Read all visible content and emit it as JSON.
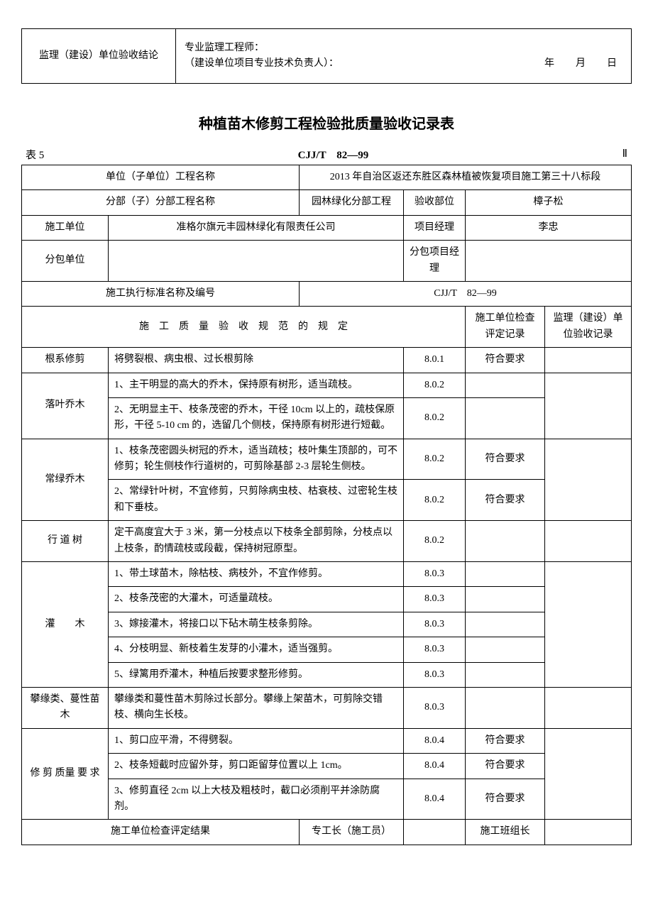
{
  "topBox": {
    "leftLabel": "监理（建设）单位验收结论",
    "line1": "专业监理工程师：",
    "line2": "（建设单位项目专业技术负责人）：",
    "date": "年　月　日"
  },
  "title": "种植苗木修剪工程检验批质量验收记录表",
  "subHeader": {
    "left": "表 5",
    "center": "CJJ/T　82—99",
    "right": "Ⅱ"
  },
  "info": {
    "unitProjectLabel": "单位（子单位）工程名称",
    "unitProjectValue": "2013 年自治区返还东胜区森林植被恢复项目施工第三十八标段",
    "subProjectLabel": "分部（子）分部工程名称",
    "subProjectValue": "园林绿化分部工程",
    "acceptPartLabel": "验收部位",
    "acceptPartValue": "樟子松",
    "constructorLabel": "施工单位",
    "constructorValue": "准格尔旗元丰园林绿化有限责任公司",
    "pmLabel": "项目经理",
    "pmValue": "李忠",
    "subcontractorLabel": "分包单位",
    "subcontractorValue": "",
    "subPmLabel": "分包项目经理",
    "subPmValue": "",
    "standardLabel": "施工执行标准名称及编号",
    "standardValue": "CJJ/T　82—99"
  },
  "header": {
    "spec": "施　工　质　量　验　收　规　范　的　规　定",
    "check": "施工单位检查评定记录",
    "supervise": "监理（建设）单位验收记录"
  },
  "rows": [
    {
      "cat": "根系修剪",
      "catSpan": 1,
      "desc": "将劈裂根、病虫根、过长根剪除",
      "code": "8.0.1",
      "check": "符合要求"
    },
    {
      "cat": "落叶乔木",
      "catSpan": 2,
      "desc": "1、主干明显的高大的乔木，保持原有树形，适当疏枝。",
      "code": "8.0.2",
      "check": ""
    },
    {
      "desc": "2、无明显主干、枝条茂密的乔木，干径 10cm 以上的，疏枝保原形，干径 5-10 cm 的，选留几个侧枝，保持原有树形进行短截。",
      "code": "8.0.2",
      "check": ""
    },
    {
      "cat": "常绿乔木",
      "catSpan": 2,
      "desc": "1、枝条茂密圆头树冠的乔木，适当疏枝；枝叶集生顶部的，可不修剪；轮生侧枝作行道树的，可剪除基部 2-3 层轮生侧枝。",
      "code": "8.0.2",
      "check": "符合要求"
    },
    {
      "desc": "2、常绿针叶树，不宜修剪，只剪除病虫枝、枯衰枝、过密轮生枝和下垂枝。",
      "code": "8.0.2",
      "check": "符合要求"
    },
    {
      "cat": "行 道 树",
      "catSpan": 1,
      "desc": "定干高度宜大于 3 米，第一分枝点以下枝条全部剪除，分枝点以上枝条，酌情疏枝或段截，保持树冠原型。",
      "code": "8.0.2",
      "check": ""
    },
    {
      "cat": "灌　　木",
      "catSpan": 5,
      "desc": "1、带土球苗木，除枯枝、病枝外，不宜作修剪。",
      "code": "8.0.3",
      "check": ""
    },
    {
      "desc": "2、枝条茂密的大灌木，可适量疏枝。",
      "code": "8.0.3",
      "check": ""
    },
    {
      "desc": "3、嫁接灌木，将接口以下砧木萌生枝条剪除。",
      "code": "8.0.3",
      "check": ""
    },
    {
      "desc": "4、分枝明显、新枝着生发芽的小灌木，适当强剪。",
      "code": "8.0.3",
      "check": ""
    },
    {
      "desc": "5、绿篱用乔灌木，种植后按要求整形修剪。",
      "code": "8.0.3",
      "check": ""
    },
    {
      "cat": "攀缘类、蔓性苗木",
      "catSpan": 1,
      "desc": "攀缘类和蔓性苗木剪除过长部分。攀缘上架苗木，可剪除交错枝、横向生长枝。",
      "code": "8.0.3",
      "check": ""
    },
    {
      "cat": "修 剪 质量 要 求",
      "catSpan": 3,
      "desc": "1、剪口应平滑，不得劈裂。",
      "code": "8.0.4",
      "check": "符合要求"
    },
    {
      "desc": "2、枝条短截时应留外芽，剪口距留芽位置以上 1cm。",
      "code": "8.0.4",
      "check": "符合要求"
    },
    {
      "desc": "3、修剪直径 2cm 以上大枝及粗枝时，截口必须削平并涂防腐剂。",
      "code": "8.0.4",
      "check": "符合要求"
    }
  ],
  "footer": {
    "resultLabel": "施工单位检查评定结果",
    "foremanLabel": "专工长（施工员）",
    "teamLeaderLabel": "施工班组长"
  }
}
